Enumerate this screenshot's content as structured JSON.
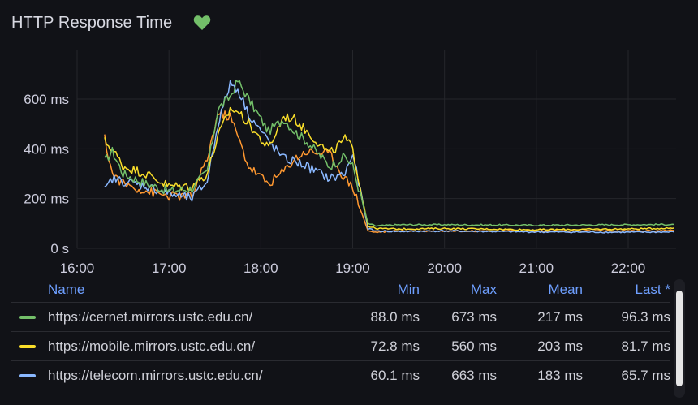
{
  "panel": {
    "title": "HTTP Response Time",
    "health_icon": "heart-icon",
    "health_color": "#73bf69"
  },
  "chart_data": {
    "type": "line",
    "title": "HTTP Response Time",
    "xlabel": "",
    "ylabel": "",
    "x_ticks": [
      "16:00",
      "17:00",
      "18:00",
      "19:00",
      "20:00",
      "21:00",
      "22:00"
    ],
    "y_ticks": [
      "0 s",
      "200 ms",
      "400 ms",
      "600 ms"
    ],
    "ylim": [
      0,
      720
    ],
    "xlim": [
      "16:00",
      "22:30"
    ],
    "grid": true,
    "legend": "bottom",
    "series": [
      {
        "name": "https://cernet.mirrors.ustc.edu.cn/",
        "color": "#73bf69",
        "points": [
          [
            "16:18",
            350
          ],
          [
            "16:23",
            390
          ],
          [
            "16:30",
            300
          ],
          [
            "16:45",
            260
          ],
          [
            "17:00",
            230
          ],
          [
            "17:15",
            240
          ],
          [
            "17:25",
            310
          ],
          [
            "17:32",
            560
          ],
          [
            "17:40",
            610
          ],
          [
            "17:45",
            673
          ],
          [
            "17:52",
            600
          ],
          [
            "18:05",
            470
          ],
          [
            "18:15",
            520
          ],
          [
            "18:22",
            470
          ],
          [
            "18:30",
            430
          ],
          [
            "18:45",
            330
          ],
          [
            "18:55",
            370
          ],
          [
            "19:00",
            330
          ],
          [
            "19:10",
            100
          ],
          [
            "19:15",
            90
          ],
          [
            "19:30",
            95
          ],
          [
            "20:00",
            95
          ],
          [
            "21:00",
            93
          ],
          [
            "22:00",
            95
          ],
          [
            "22:30",
            96.3
          ]
        ]
      },
      {
        "name": "https://mobile.mirrors.ustc.edu.cn/",
        "color": "#fade2a",
        "points": [
          [
            "16:18",
            430
          ],
          [
            "16:23",
            400
          ],
          [
            "16:30",
            330
          ],
          [
            "16:45",
            300
          ],
          [
            "17:00",
            250
          ],
          [
            "17:15",
            250
          ],
          [
            "17:25",
            300
          ],
          [
            "17:32",
            450
          ],
          [
            "17:40",
            560
          ],
          [
            "17:45",
            550
          ],
          [
            "17:52",
            500
          ],
          [
            "18:05",
            400
          ],
          [
            "18:15",
            530
          ],
          [
            "18:22",
            520
          ],
          [
            "18:30",
            470
          ],
          [
            "18:45",
            380
          ],
          [
            "18:55",
            440
          ],
          [
            "19:00",
            400
          ],
          [
            "19:10",
            90
          ],
          [
            "19:15",
            80
          ],
          [
            "19:30",
            78
          ],
          [
            "20:00",
            80
          ],
          [
            "21:00",
            75
          ],
          [
            "22:00",
            78
          ],
          [
            "22:30",
            81.7
          ]
        ]
      },
      {
        "name": "https://telecom.mirrors.ustc.edu.cn/",
        "color": "#8ab8ff",
        "points": [
          [
            "16:18",
            230
          ],
          [
            "16:23",
            280
          ],
          [
            "16:30",
            270
          ],
          [
            "16:45",
            250
          ],
          [
            "17:00",
            220
          ],
          [
            "17:15",
            200
          ],
          [
            "17:25",
            270
          ],
          [
            "17:32",
            500
          ],
          [
            "17:40",
            663
          ],
          [
            "17:45",
            640
          ],
          [
            "17:52",
            540
          ],
          [
            "18:05",
            430
          ],
          [
            "18:15",
            360
          ],
          [
            "18:22",
            350
          ],
          [
            "18:30",
            330
          ],
          [
            "18:45",
            280
          ],
          [
            "18:55",
            300
          ],
          [
            "19:00",
            380
          ],
          [
            "19:10",
            80
          ],
          [
            "19:15",
            70
          ],
          [
            "19:30",
            68
          ],
          [
            "20:00",
            70
          ],
          [
            "21:00",
            66
          ],
          [
            "22:00",
            65
          ],
          [
            "22:30",
            65.7
          ]
        ]
      },
      {
        "name": "",
        "color": "#ff9830",
        "points": [
          [
            "16:18",
            440
          ],
          [
            "16:23",
            300
          ],
          [
            "16:30",
            260
          ],
          [
            "16:45",
            230
          ],
          [
            "17:00",
            210
          ],
          [
            "17:15",
            210
          ],
          [
            "17:25",
            360
          ],
          [
            "17:32",
            540
          ],
          [
            "17:40",
            530
          ],
          [
            "17:45",
            450
          ],
          [
            "17:52",
            330
          ],
          [
            "18:05",
            260
          ],
          [
            "18:15",
            310
          ],
          [
            "18:22",
            360
          ],
          [
            "18:30",
            390
          ],
          [
            "18:45",
            380
          ],
          [
            "18:55",
            280
          ],
          [
            "19:00",
            250
          ],
          [
            "19:10",
            70
          ],
          [
            "19:15",
            65
          ],
          [
            "19:30",
            70
          ],
          [
            "20:00",
            70
          ],
          [
            "21:00",
            70
          ],
          [
            "22:00",
            70
          ],
          [
            "22:30",
            72
          ]
        ]
      }
    ]
  },
  "legend": {
    "headers": {
      "name": "Name",
      "min": "Min",
      "max": "Max",
      "mean": "Mean",
      "last": "Last *"
    },
    "rows": [
      {
        "color": "#73bf69",
        "name": "https://cernet.mirrors.ustc.edu.cn/",
        "min": "88.0 ms",
        "max": "673 ms",
        "mean": "217 ms",
        "last": "96.3 ms"
      },
      {
        "color": "#fade2a",
        "name": "https://mobile.mirrors.ustc.edu.cn/",
        "min": "72.8 ms",
        "max": "560 ms",
        "mean": "203 ms",
        "last": "81.7 ms"
      },
      {
        "color": "#8ab8ff",
        "name": "https://telecom.mirrors.ustc.edu.cn/",
        "min": "60.1 ms",
        "max": "663 ms",
        "mean": "183 ms",
        "last": "65.7 ms"
      }
    ]
  }
}
